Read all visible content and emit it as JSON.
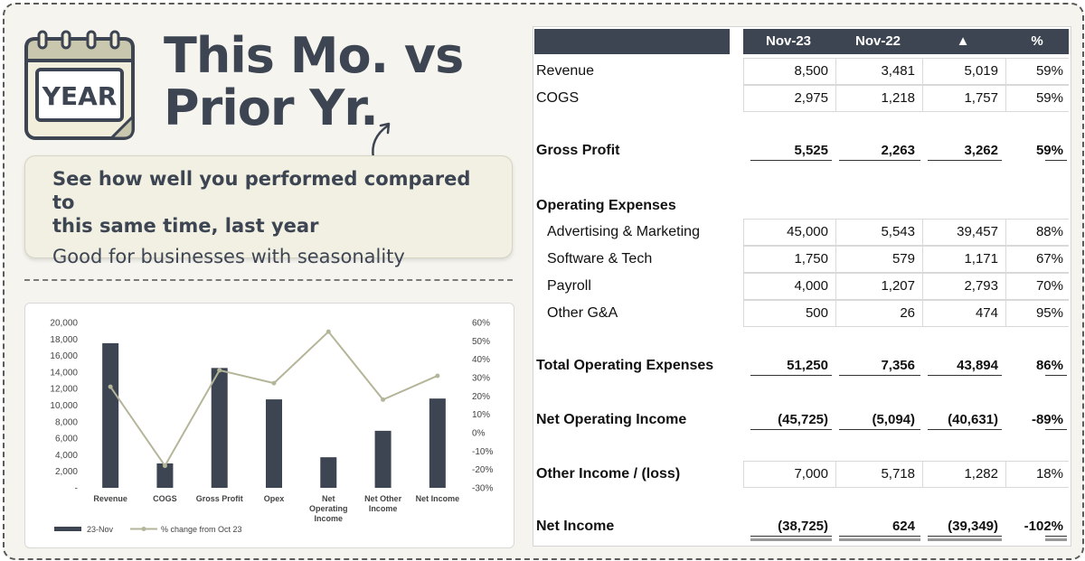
{
  "header": {
    "title_line1": "This Mo. vs",
    "title_line2": "Prior Yr.",
    "calendar_label": "YEAR"
  },
  "callout": {
    "heading_line1": "See how well you performed compared to",
    "heading_line2": "this same time, last year",
    "subtext": "Good for businesses with seasonality"
  },
  "table": {
    "columns": [
      "Nov-23",
      "Nov-22",
      "▲",
      "%"
    ],
    "rows": [
      {
        "label": "Revenue",
        "style": "cell",
        "values": [
          "8,500",
          "3,481",
          "5,019",
          "59%"
        ]
      },
      {
        "label": "COGS",
        "style": "cell",
        "values": [
          "2,975",
          "1,218",
          "1,757",
          "59%"
        ]
      },
      {
        "label": "Gross Profit",
        "style": "total",
        "values": [
          "5,525",
          "2,263",
          "3,262",
          "59%"
        ]
      },
      {
        "label": "Operating Expenses",
        "style": "section",
        "values": []
      },
      {
        "label": "Advertising & Marketing",
        "style": "cell-indent",
        "values": [
          "45,000",
          "5,543",
          "39,457",
          "88%"
        ]
      },
      {
        "label": "Software & Tech",
        "style": "cell-indent",
        "values": [
          "1,750",
          "579",
          "1,171",
          "67%"
        ]
      },
      {
        "label": "Payroll",
        "style": "cell-indent",
        "values": [
          "4,000",
          "1,207",
          "2,793",
          "70%"
        ]
      },
      {
        "label": "Other G&A",
        "style": "cell-indent",
        "values": [
          "500",
          "26",
          "474",
          "95%"
        ]
      },
      {
        "label": "Total Operating Expenses",
        "style": "total",
        "values": [
          "51,250",
          "7,356",
          "43,894",
          "86%"
        ]
      },
      {
        "label": "Net Operating Income",
        "style": "total",
        "values": [
          "(45,725)",
          "(5,094)",
          "(40,631)",
          "-89%"
        ]
      },
      {
        "label": "Other Income / (loss)",
        "style": "cell-boldlabel",
        "values": [
          "7,000",
          "5,718",
          "1,282",
          "18%"
        ]
      },
      {
        "label": "Net Income",
        "style": "grand",
        "values": [
          "(38,725)",
          "624",
          "(39,349)",
          "-102%"
        ]
      }
    ]
  },
  "chart_data": {
    "type": "bar",
    "categories": [
      "Revenue",
      "COGS",
      "Gross Profit",
      "Opex",
      "Net Operating Income",
      "Net Other Income",
      "Net Income"
    ],
    "category_labels": [
      [
        "Revenue"
      ],
      [
        "COGS"
      ],
      [
        "Gross Profit"
      ],
      [
        "Opex"
      ],
      [
        "Net",
        "Operating",
        "Income"
      ],
      [
        "Net Other",
        "Income"
      ],
      [
        "Net Income"
      ]
    ],
    "series": [
      {
        "name": "23-Nov",
        "kind": "bar",
        "axis": "left",
        "color": "#3d4552",
        "values": [
          17500,
          2950,
          14500,
          10700,
          3700,
          6900,
          10800
        ]
      },
      {
        "name": "% change from Oct 23",
        "kind": "line",
        "axis": "right",
        "color": "#b5b59a",
        "values": [
          25,
          -18,
          34,
          27,
          55,
          18,
          31
        ]
      }
    ],
    "left_axis": {
      "min": 0,
      "max": 20000,
      "ticks": [
        "-",
        "2,000",
        "4,000",
        "6,000",
        "8,000",
        "10,000",
        "12,000",
        "14,000",
        "16,000",
        "18,000",
        "20,000"
      ]
    },
    "right_axis": {
      "min": -30,
      "max": 60,
      "ticks": [
        "-30%",
        "-20%",
        "-10%",
        "0%",
        "10%",
        "20%",
        "30%",
        "40%",
        "50%",
        "60%"
      ]
    },
    "legend_position": "bottom-left",
    "grid": false
  },
  "colors": {
    "navy": "#3d4552",
    "line": "#b5b59a",
    "background": "#f6f4ee"
  }
}
